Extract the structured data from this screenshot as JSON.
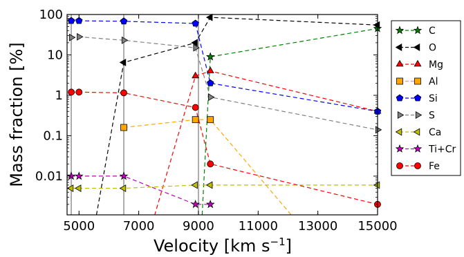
{
  "chart_data": {
    "type": "line",
    "title": "",
    "xlabel": "Velocity [km s",
    "xlabel_sup": "−1",
    "xlabel_end": "]",
    "ylabel": "Mass fraction [%]",
    "xscale": "linear",
    "yscale": "log",
    "xlim": [
      4600,
      15000
    ],
    "ylim": [
      0.0011,
      100
    ],
    "xticks": [
      5000,
      7000,
      9000,
      11000,
      13000,
      15000
    ],
    "xtick_labels": [
      "5000",
      "7000",
      "9000",
      "11000",
      "13000",
      "15000"
    ],
    "yticks": [
      0.01,
      0.1,
      1,
      10,
      100
    ],
    "ytick_labels": [
      "0.01",
      "0.1",
      "1",
      "10",
      "100"
    ],
    "grid": false,
    "vertical_lines": [
      4740,
      6500,
      9000
    ],
    "legend_position": "outside-right",
    "series": [
      {
        "name": "C",
        "color": "#008000",
        "marker": "star",
        "x": [
          9100,
          9400,
          15000
        ],
        "y": [
          0.0005,
          9,
          45
        ]
      },
      {
        "name": "O",
        "color": "#000000",
        "marker": "triangle-left",
        "x": [
          5500,
          6500,
          8900,
          9400,
          15000
        ],
        "y": [
          0.0005,
          6.5,
          20,
          85,
          55
        ]
      },
      {
        "name": "Mg",
        "color": "#ff0000",
        "marker": "triangle-up",
        "x": [
          7400,
          8900,
          9400,
          15000
        ],
        "y": [
          0.0005,
          3,
          4,
          0.4
        ]
      },
      {
        "name": "Al",
        "color": "#ffa500",
        "marker": "square",
        "x": [
          6500,
          8900,
          9400,
          12500
        ],
        "y": [
          0.16,
          0.25,
          0.25,
          0.0005
        ]
      },
      {
        "name": "Si",
        "color": "#0000ff",
        "marker": "pentagon",
        "x": [
          4740,
          5000,
          6500,
          8900,
          9400,
          15000
        ],
        "y": [
          70,
          70,
          68,
          60,
          2,
          0.4
        ]
      },
      {
        "name": "S",
        "color": "#808080",
        "marker": "triangle-right",
        "x": [
          4740,
          5000,
          6500,
          8900,
          9400,
          15000
        ],
        "y": [
          27,
          28,
          23,
          15,
          0.9,
          0.14
        ]
      },
      {
        "name": "Ca",
        "color": "#bfbf00",
        "marker": "triangle-left",
        "x": [
          4740,
          5000,
          6500,
          8900,
          9400,
          15000
        ],
        "y": [
          0.005,
          0.005,
          0.005,
          0.006,
          0.006,
          0.006
        ]
      },
      {
        "name": "Ti+Cr",
        "color": "#bf00bf",
        "marker": "star",
        "x": [
          4740,
          5000,
          6500,
          8900,
          9400
        ],
        "y": [
          0.01,
          0.01,
          0.01,
          0.002,
          0.002
        ]
      },
      {
        "name": "Fe",
        "color": "#ff0000",
        "marker": "circle",
        "x": [
          4740,
          5000,
          6500,
          8900,
          9400,
          15000
        ],
        "y": [
          1.2,
          1.2,
          1.15,
          0.5,
          0.02,
          0.002
        ]
      }
    ]
  }
}
